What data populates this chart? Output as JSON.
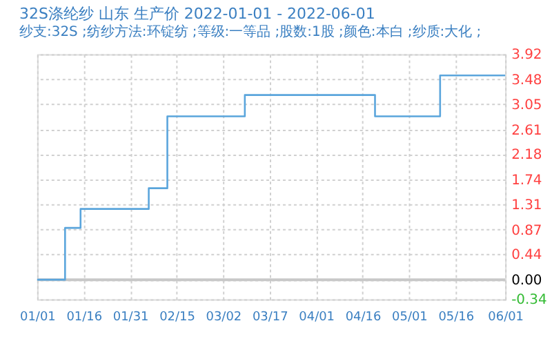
{
  "chart_data": {
    "type": "step",
    "title": "32S涤纶纱 山东 生产价 2022-01-01 - 2022-06-01",
    "subtitle": "纱支:32S ;纺纱方法:环锭纺 ;等级:一等品 ;股数:1股 ;颜色:本白 ;纱质:大化 ;",
    "x": [
      "2022-01-01",
      "2022-01-10",
      "2022-01-15",
      "2022-02-06",
      "2022-02-12",
      "2022-03-09",
      "2022-04-20",
      "2022-05-11",
      "2022-06-01"
    ],
    "series": [
      {
        "color": "#5aa5dc",
        "values": [
          0,
          0.9,
          1.23,
          1.59,
          2.84,
          3.21,
          2.84,
          3.55,
          3.55
        ]
      }
    ],
    "xlim": [
      "2022-01-01",
      "2022-06-01"
    ],
    "xticks": [
      {
        "value": "2022-01-01",
        "label": "01/01"
      },
      {
        "value": "2022-01-16",
        "label": "01/16"
      },
      {
        "value": "2022-01-31",
        "label": "01/31"
      },
      {
        "value": "2022-02-15",
        "label": "02/15"
      },
      {
        "value": "2022-03-02",
        "label": "03/02"
      },
      {
        "value": "2022-03-17",
        "label": "03/17"
      },
      {
        "value": "2022-04-01",
        "label": "04/01"
      },
      {
        "value": "2022-04-16",
        "label": "04/16"
      },
      {
        "value": "2022-05-01",
        "label": "05/01"
      },
      {
        "value": "2022-05-16",
        "label": "05/16"
      },
      {
        "value": "2022-06-01",
        "label": "06/01"
      }
    ],
    "ylim": [
      -0.34,
      3.92
    ],
    "yticks": [
      {
        "value": -0.34,
        "label": "-0.34"
      },
      {
        "value": 0,
        "label": "0.00"
      },
      {
        "value": 0.44,
        "label": "0.44"
      },
      {
        "value": 0.87,
        "label": "0.87"
      },
      {
        "value": 1.31,
        "label": "1.31"
      },
      {
        "value": 1.74,
        "label": "1.74"
      },
      {
        "value": 2.18,
        "label": "2.18"
      },
      {
        "value": 2.61,
        "label": "2.61"
      },
      {
        "value": 3.05,
        "label": "3.05"
      },
      {
        "value": 3.48,
        "label": "3.48"
      },
      {
        "value": 3.92,
        "label": "3.92"
      }
    ],
    "ref_lines": [
      {
        "axis": "y",
        "value": 0,
        "color": "#c8c8c8"
      }
    ],
    "grid": true,
    "legend": false,
    "line_style": "solid",
    "marker": "none"
  }
}
